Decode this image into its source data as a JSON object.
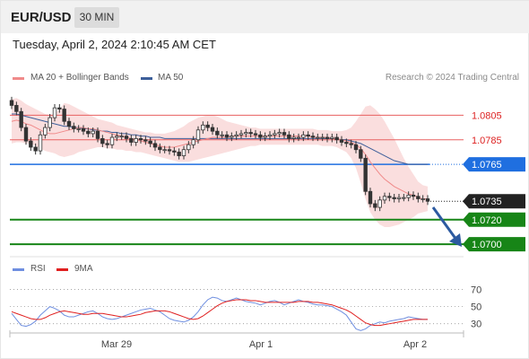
{
  "header": {
    "symbol": "EUR/USD",
    "timeframe": "30 MIN"
  },
  "timestamp": "Tuesday, April 2, 2024 2:10:45 AM CET",
  "legend_main": [
    {
      "label": "MA 20 + Bollinger Bands",
      "color": "#f08a8a"
    },
    {
      "label": "MA 50",
      "color": "#3d5f9a"
    }
  ],
  "legend_rsi": [
    {
      "label": "RSI",
      "color": "#6f8fe0"
    },
    {
      "label": "9MA",
      "color": "#e02020"
    }
  ],
  "copyright": "Research © 2024 Trading Central",
  "colors": {
    "pivot": "#1f6fe0",
    "support": "#178517",
    "resistance": "#e86060",
    "last": "#222222",
    "arrow": "#2c5aa0",
    "band": "#fadede"
  },
  "chart_data": [
    {
      "type": "line",
      "title": "",
      "ylim": [
        1.0695,
        1.0825
      ],
      "x_ticks": [
        "Mar 29",
        "Apr 1",
        "Apr 2"
      ],
      "levels": [
        {
          "value": 1.0805,
          "label": "1.0805",
          "role": "resistance"
        },
        {
          "value": 1.0785,
          "label": "1.0785",
          "role": "resistance"
        },
        {
          "value": 1.0765,
          "label": "1.0765",
          "role": "pivot"
        },
        {
          "value": 1.0735,
          "label": "1.0735",
          "role": "last"
        },
        {
          "value": 1.072,
          "label": "1.0720",
          "role": "support"
        },
        {
          "value": 1.07,
          "label": "1.0700",
          "role": "support"
        }
      ],
      "series": [
        {
          "values": [
            1.0813,
            1.0808,
            1.0795,
            1.0784,
            1.0779,
            1.0776,
            1.0789,
            1.0795,
            1.0803,
            1.0811,
            1.081,
            1.08,
            1.0796,
            1.0794,
            1.0794,
            1.0792,
            1.079,
            1.0792,
            1.0786,
            1.0782,
            1.0781,
            1.0787,
            1.0788,
            1.0788,
            1.0786,
            1.0783,
            1.0786,
            1.0785,
            1.0784,
            1.0782,
            1.0779,
            1.0777,
            1.0777,
            1.0776,
            1.0775,
            1.0772,
            1.0777,
            1.0781,
            1.0785,
            1.0793,
            1.0797,
            1.0795,
            1.0792,
            1.0789,
            1.0789,
            1.0787,
            1.0788,
            1.0789,
            1.079,
            1.0791,
            1.079,
            1.0789,
            1.0787,
            1.0788,
            1.0789,
            1.079,
            1.0791,
            1.0789,
            1.0786,
            1.0787,
            1.0787,
            1.0789,
            1.0788,
            1.0787,
            1.0787,
            1.0787,
            1.0786,
            1.0787,
            1.0785,
            1.0783,
            1.0782,
            1.0781,
            1.0777,
            1.077,
            1.0743,
            1.0733,
            1.073,
            1.0736,
            1.0739,
            1.0738,
            1.0737,
            1.0738,
            1.0738,
            1.074,
            1.0739,
            1.0737,
            1.0737,
            1.0735
          ]
        },
        {
          "name": "MA 20",
          "values": [
            1.08,
            1.0801,
            1.08,
            1.0798,
            1.0797,
            1.0795,
            1.0793,
            1.0791,
            1.079,
            1.079,
            1.0791,
            1.0792,
            1.0793,
            1.0794,
            1.0795,
            1.0795,
            1.0794,
            1.0794,
            1.0793,
            1.0792,
            1.0791,
            1.079,
            1.0789,
            1.0788,
            1.0787,
            1.0786,
            1.0785,
            1.0784,
            1.0783,
            1.0782,
            1.0781,
            1.078,
            1.0779,
            1.0779,
            1.0779,
            1.078,
            1.0781,
            1.0782,
            1.0783,
            1.0784,
            1.0785,
            1.0786,
            1.0787,
            1.0787,
            1.0787,
            1.0787,
            1.0788,
            1.0788,
            1.0788,
            1.0788,
            1.0788,
            1.0788,
            1.0788,
            1.0788,
            1.0788,
            1.0788,
            1.0788,
            1.0788,
            1.0788,
            1.0788,
            1.0788,
            1.0788,
            1.0788,
            1.0787,
            1.0787,
            1.0787,
            1.0787,
            1.0786,
            1.0786,
            1.0785,
            1.0784,
            1.0783,
            1.0781,
            1.0778,
            1.0773,
            1.0767,
            1.0762,
            1.0757,
            1.0753,
            1.075,
            1.0747,
            1.0745,
            1.0743,
            1.0741,
            1.074,
            1.0738,
            1.0737,
            1.0737
          ]
        },
        {
          "name": "MA 50",
          "values": [
            1.0806,
            1.0806,
            1.0805,
            1.0804,
            1.0803,
            1.0802,
            1.0801,
            1.08,
            1.0799,
            1.0798,
            1.0797,
            1.0796,
            1.0796,
            1.0795,
            1.0795,
            1.0794,
            1.0794,
            1.0793,
            1.0793,
            1.0792,
            1.0792,
            1.0791,
            1.0791,
            1.079,
            1.079,
            1.0789,
            1.0789,
            1.0788,
            1.0788,
            1.0787,
            1.0787,
            1.0787,
            1.0786,
            1.0786,
            1.0786,
            1.0786,
            1.0786,
            1.0786,
            1.0786,
            1.0786,
            1.0786,
            1.0786,
            1.0786,
            1.0786,
            1.0786,
            1.0786,
            1.0786,
            1.0786,
            1.0786,
            1.0786,
            1.0786,
            1.0786,
            1.0786,
            1.0786,
            1.0786,
            1.0786,
            1.0786,
            1.0786,
            1.0786,
            1.0786,
            1.0786,
            1.0786,
            1.0786,
            1.0786,
            1.0786,
            1.0786,
            1.0786,
            1.0786,
            1.0786,
            1.0785,
            1.0785,
            1.0784,
            1.0783,
            1.0782,
            1.078,
            1.0778,
            1.0776,
            1.0774,
            1.0772,
            1.077,
            1.0768,
            1.0767,
            1.0766,
            1.0765,
            1.0765,
            1.0765,
            1.0765,
            1.0765
          ]
        },
        {
          "name": "Bollinger Upper",
          "values": [
            1.0818,
            1.0819,
            1.0817,
            1.0814,
            1.0812,
            1.081,
            1.0808,
            1.0806,
            1.0805,
            1.0806,
            1.081,
            1.0815,
            1.0814,
            1.0812,
            1.081,
            1.0808,
            1.0806,
            1.0804,
            1.0802,
            1.0801,
            1.08,
            1.0799,
            1.0797,
            1.0796,
            1.0795,
            1.0794,
            1.0793,
            1.0792,
            1.0791,
            1.0791,
            1.079,
            1.079,
            1.079,
            1.0791,
            1.0792,
            1.0794,
            1.0796,
            1.0799,
            1.0801,
            1.0803,
            1.0804,
            1.0805,
            1.0805,
            1.0804,
            1.0802,
            1.08,
            1.0799,
            1.0798,
            1.0797,
            1.0796,
            1.0795,
            1.0795,
            1.0794,
            1.0794,
            1.0794,
            1.0794,
            1.0794,
            1.0794,
            1.0794,
            1.0794,
            1.0794,
            1.0794,
            1.0794,
            1.0794,
            1.0793,
            1.0793,
            1.0793,
            1.0792,
            1.0792,
            1.0792,
            1.0793,
            1.0795,
            1.08,
            1.0806,
            1.0812,
            1.0813,
            1.081,
            1.0806,
            1.08,
            1.0793,
            1.0786,
            1.0778,
            1.077,
            1.0763,
            1.0757,
            1.0751,
            1.0748,
            1.0747
          ]
        },
        {
          "name": "Bollinger Lower",
          "values": [
            1.0782,
            1.0783,
            1.0783,
            1.0782,
            1.0782,
            1.078,
            1.0778,
            1.0776,
            1.0775,
            1.0774,
            1.0772,
            1.0771,
            1.0772,
            1.0773,
            1.0775,
            1.0776,
            1.0777,
            1.0778,
            1.0779,
            1.0779,
            1.0778,
            1.0778,
            1.0777,
            1.0777,
            1.0776,
            1.0776,
            1.0775,
            1.0775,
            1.0774,
            1.0773,
            1.0772,
            1.0771,
            1.077,
            1.0769,
            1.0768,
            1.0767,
            1.0767,
            1.0767,
            1.0768,
            1.0769,
            1.077,
            1.0771,
            1.0772,
            1.0773,
            1.0774,
            1.0775,
            1.0776,
            1.0777,
            1.0778,
            1.0779,
            1.078,
            1.078,
            1.0781,
            1.0781,
            1.0781,
            1.0781,
            1.0781,
            1.0781,
            1.0781,
            1.0781,
            1.0781,
            1.0781,
            1.0781,
            1.0781,
            1.0781,
            1.078,
            1.078,
            1.078,
            1.0779,
            1.0777,
            1.0775,
            1.077,
            1.0762,
            1.075,
            1.0737,
            1.0726,
            1.072,
            1.0716,
            1.0714,
            1.0714,
            1.0715,
            1.0716,
            1.0718,
            1.072,
            1.0722,
            1.0725,
            1.0726,
            1.0727
          ]
        }
      ]
    },
    {
      "type": "line",
      "title": "",
      "ylim": [
        15,
        80
      ],
      "y_ticks": [
        70,
        50,
        30
      ],
      "series": [
        {
          "name": "RSI",
          "values": [
            42,
            35,
            28,
            27,
            29,
            33,
            40,
            45,
            50,
            48,
            45,
            40,
            38,
            38,
            40,
            42,
            44,
            45,
            42,
            38,
            36,
            35,
            36,
            38,
            40,
            42,
            44,
            46,
            47,
            48,
            46,
            44,
            40,
            36,
            34,
            33,
            32,
            34,
            38,
            44,
            52,
            58,
            61,
            60,
            57,
            56,
            58,
            60,
            58,
            56,
            55,
            54,
            52,
            54,
            56,
            57,
            55,
            52,
            54,
            56,
            58,
            56,
            55,
            53,
            52,
            52,
            51,
            50,
            47,
            44,
            40,
            32,
            24,
            22,
            24,
            28,
            30,
            32,
            31,
            33,
            34,
            35,
            36,
            38,
            37,
            36,
            35,
            35
          ]
        },
        {
          "name": "9MA",
          "values": [
            44,
            42,
            40,
            38,
            36,
            35,
            35,
            37,
            40,
            42,
            44,
            45,
            44,
            43,
            42,
            41,
            41,
            42,
            42,
            42,
            41,
            40,
            39,
            38,
            38,
            39,
            40,
            41,
            43,
            44,
            45,
            45,
            45,
            44,
            42,
            40,
            38,
            36,
            35,
            36,
            39,
            43,
            47,
            51,
            54,
            56,
            57,
            58,
            58,
            58,
            57,
            57,
            56,
            55,
            55,
            55,
            55,
            55,
            55,
            55,
            56,
            56,
            56,
            55,
            55,
            54,
            53,
            52,
            50,
            48,
            46,
            43,
            39,
            35,
            31,
            29,
            28,
            28,
            29,
            30,
            31,
            32,
            33,
            34,
            35,
            35,
            35,
            35
          ]
        }
      ]
    }
  ]
}
